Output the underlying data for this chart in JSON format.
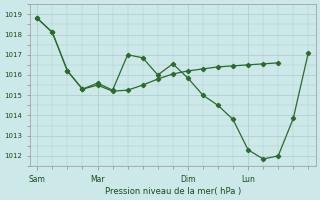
{
  "title": "Pression niveau de la mer( hPa )",
  "bg_color": "#cce8e8",
  "grid_color": "#aacccc",
  "line_color": "#2d6a2d",
  "ylim": [
    1011.5,
    1019.5
  ],
  "yticks": [
    1012,
    1013,
    1014,
    1015,
    1016,
    1017,
    1018,
    1019
  ],
  "xtick_labels": [
    "Sam",
    "Mar",
    "Dim",
    "Lun"
  ],
  "xtick_positions": [
    0,
    24,
    60,
    84
  ],
  "total_hours": 108,
  "line1_x": [
    0,
    6,
    12,
    18,
    24,
    30,
    36,
    42,
    48,
    54,
    60,
    66,
    72,
    78,
    84,
    90,
    96
  ],
  "line1_y": [
    1018.8,
    1018.1,
    1016.2,
    1015.3,
    1015.5,
    1015.2,
    1015.25,
    1015.5,
    1015.8,
    1016.05,
    1016.2,
    1016.3,
    1016.4,
    1016.45,
    1016.5,
    1016.55,
    1016.6
  ],
  "line2_x": [
    0,
    6,
    12,
    18,
    24,
    30,
    36,
    42,
    48,
    54,
    60,
    66,
    72,
    78,
    84,
    90,
    96,
    102,
    108
  ],
  "line2_y": [
    1018.8,
    1018.1,
    1016.2,
    1015.3,
    1015.6,
    1015.25,
    1017.0,
    1016.85,
    1016.0,
    1016.55,
    1015.85,
    1015.0,
    1014.5,
    1013.8,
    1012.3,
    1011.85,
    1012.0,
    1013.85,
    1017.1
  ]
}
